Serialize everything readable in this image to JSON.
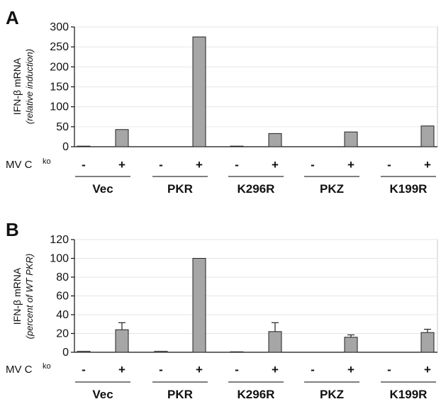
{
  "chart_data": [
    {
      "panel": "A",
      "type": "bar",
      "ylabel": "IFN-β mRNA",
      "ylabel_sub": "(relative induction)",
      "ylim": [
        0,
        300
      ],
      "yticks": [
        0,
        50,
        100,
        150,
        200,
        250,
        300
      ],
      "grid": true,
      "treatment_label": "MV C",
      "treatment_sup": "ko",
      "signs": [
        "-",
        "+",
        "-",
        "+",
        "-",
        "+",
        "-",
        "+",
        "-",
        "+"
      ],
      "groups": [
        "Vec",
        "PKR",
        "K296R",
        "PKZ",
        "K199R"
      ],
      "values": [
        1.5,
        43,
        0,
        275,
        1.5,
        33,
        0,
        37,
        0,
        52
      ],
      "errors": [
        0,
        0,
        0,
        0,
        0,
        0,
        0,
        0,
        0,
        0
      ]
    },
    {
      "panel": "B",
      "type": "bar",
      "ylabel": "IFN-β mRNA",
      "ylabel_sub": "(percent of WT PKR)",
      "ylim": [
        0,
        120
      ],
      "yticks": [
        0,
        20,
        40,
        60,
        80,
        100,
        120
      ],
      "grid": true,
      "treatment_label": "MV C",
      "treatment_sup": "ko",
      "signs": [
        "-",
        "+",
        "-",
        "+",
        "-",
        "+",
        "-",
        "+",
        "-",
        "+"
      ],
      "groups": [
        "Vec",
        "PKR",
        "K296R",
        "PKZ",
        "K199R"
      ],
      "values": [
        1,
        24,
        1,
        100,
        0.5,
        22,
        0,
        16,
        0,
        21
      ],
      "errors": [
        0,
        7.5,
        0,
        0,
        0,
        9.5,
        0,
        2.5,
        0,
        3.5
      ]
    }
  ]
}
